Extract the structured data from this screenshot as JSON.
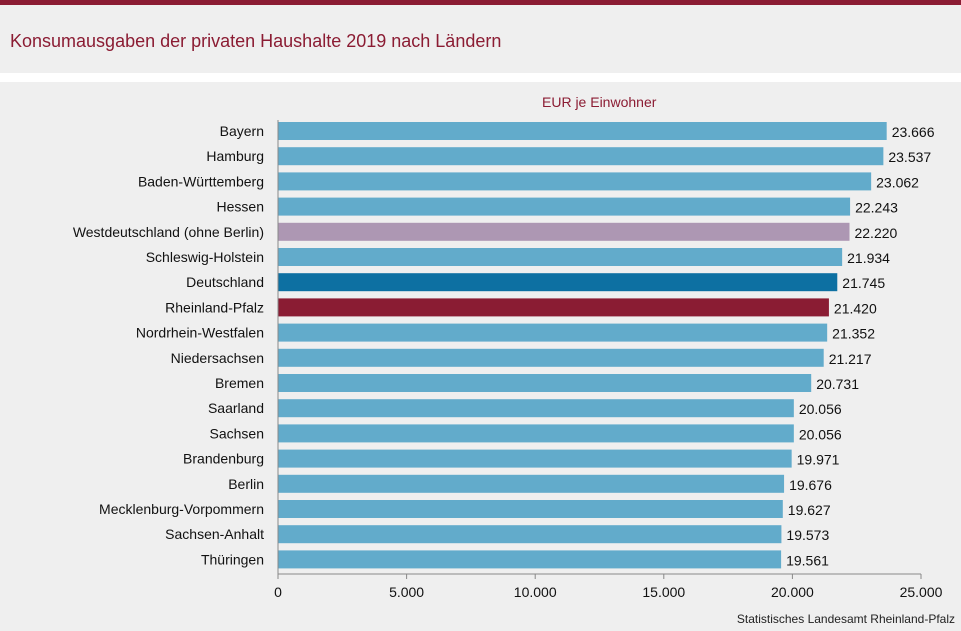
{
  "title": "Konsumausgaben der privaten Haushalte  2019 nach Ländern",
  "source": "Statistisches Landesamt  Rheinland-Pfalz",
  "colors": {
    "default": "#62abcb",
    "west": "#ad97b3",
    "deutschland": "#0d70a2",
    "rlp": "#8a1c33",
    "accent": "#8b1c33"
  },
  "chart_data": {
    "type": "bar",
    "orientation": "horizontal",
    "ylabel": "EUR je Einwohner",
    "xlim": [
      0,
      25000
    ],
    "x_ticks": [
      0,
      5000,
      10000,
      15000,
      20000,
      25000
    ],
    "x_tick_labels": [
      "0",
      "5.000",
      "10.000",
      "15.000",
      "20.000",
      "25.000"
    ],
    "categories": [
      "Bayern",
      "Hamburg",
      "Baden-Württemberg",
      "Hessen",
      "Westdeutschland (ohne Berlin)",
      "Schleswig-Holstein",
      "Deutschland",
      "Rheinland-Pfalz",
      "Nordrhein-Westfalen",
      "Niedersachsen",
      "Bremen",
      "Saarland",
      "Sachsen",
      "Brandenburg",
      "Berlin",
      "Mecklenburg-Vorpommern",
      "Sachsen-Anhalt",
      "Thüringen"
    ],
    "values": [
      23666,
      23537,
      23062,
      22243,
      22220,
      21934,
      21745,
      21420,
      21352,
      21217,
      20731,
      20056,
      20056,
      19971,
      19676,
      19627,
      19573,
      19561
    ],
    "value_labels": [
      "23.666",
      "23.537",
      "23.062",
      "22.243",
      "22.220",
      "21.934",
      "21.745",
      "21.420",
      "21.352",
      "21.217",
      "20.731",
      "20.056",
      "20.056",
      "19.971",
      "19.676",
      "19.627",
      "19.573",
      "19.561"
    ],
    "highlight": {
      "Westdeutschland (ohne Berlin)": "west",
      "Deutschland": "deutschland",
      "Rheinland-Pfalz": "rlp"
    },
    "grid": false,
    "legend": "none"
  }
}
